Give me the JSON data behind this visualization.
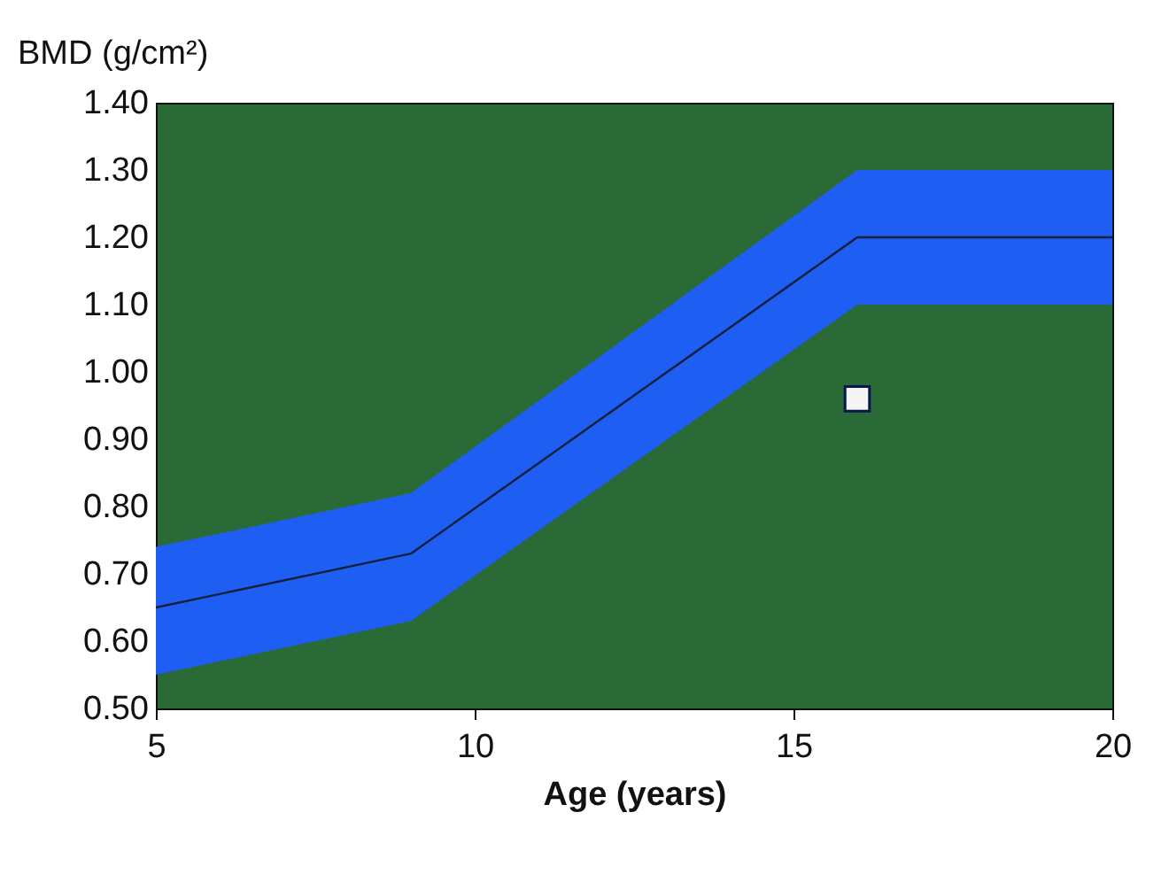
{
  "chart_data": {
    "type": "line",
    "xlabel": "Age (years)",
    "ylabel": "BMD (g/cm²)",
    "xlim": [
      5,
      20
    ],
    "xticks": [
      5,
      10,
      15,
      20
    ],
    "ylim": [
      0.5,
      1.4
    ],
    "yticks": [
      {
        "value": 0.5,
        "label": "0.50"
      },
      {
        "value": 0.6,
        "label": "0.60"
      },
      {
        "value": 0.7,
        "label": "0.70"
      },
      {
        "value": 0.8,
        "label": "0.80"
      },
      {
        "value": 0.9,
        "label": "0.90"
      },
      {
        "value": 1.0,
        "label": "1.00"
      },
      {
        "value": 1.1,
        "label": "1.10"
      },
      {
        "value": 1.2,
        "label": "1.20"
      },
      {
        "value": 1.3,
        "label": "1.30"
      },
      {
        "value": 1.4,
        "label": "1.40"
      }
    ],
    "grid": false,
    "series": [
      {
        "color": "#0d1f3a",
        "x": [
          5,
          9,
          16,
          20
        ],
        "values": [
          0.65,
          0.73,
          1.2,
          1.2
        ],
        "lower": [
          0.55,
          0.63,
          1.1,
          1.1
        ],
        "upper": [
          0.74,
          0.82,
          1.3,
          1.3
        ]
      },
      {
        "type": "scatter",
        "marker": "square",
        "color": "#f4f4f4",
        "x": [
          16
        ],
        "values": [
          0.96
        ]
      }
    ]
  }
}
